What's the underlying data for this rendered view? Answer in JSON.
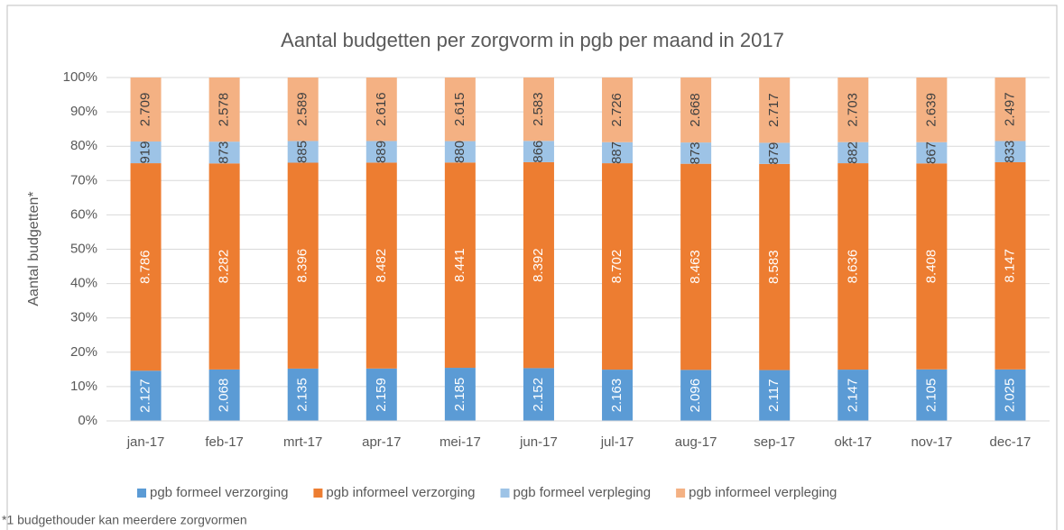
{
  "chart_data": {
    "type": "bar",
    "stacked": "percent",
    "title": "Aantal budgetten per zorgvorm in pgb per maand in 2017",
    "y_label": "Aantal budgetten*",
    "footnote": "*1 budgethouder kan meerdere zorgvormen",
    "categories": [
      "jan-17",
      "feb-17",
      "mrt-17",
      "apr-17",
      "mei-17",
      "jun-17",
      "jul-17",
      "aug-17",
      "sep-17",
      "okt-17",
      "nov-17",
      "dec-17"
    ],
    "series": [
      {
        "name": "pgb formeel verzorging",
        "color": "#5b9bd5",
        "values": [
          2127,
          2068,
          2135,
          2159,
          2185,
          2152,
          2163,
          2096,
          2117,
          2147,
          2105,
          2025
        ],
        "value_labels": [
          "2.127",
          "2.068",
          "2.135",
          "2.159",
          "2.185",
          "2.152",
          "2.163",
          "2.096",
          "2.117",
          "2.147",
          "2.105",
          "2.025"
        ]
      },
      {
        "name": "pgb informeel verzorging",
        "color": "#ed7d31",
        "values": [
          8786,
          8282,
          8396,
          8482,
          8441,
          8392,
          8702,
          8463,
          8583,
          8636,
          8408,
          8147
        ],
        "value_labels": [
          "8.786",
          "8.282",
          "8.396",
          "8.482",
          "8.441",
          "8.392",
          "8.702",
          "8.463",
          "8.583",
          "8.636",
          "8.408",
          "8.147"
        ]
      },
      {
        "name": "pgb formeel verpleging",
        "color": "#9dc3e6",
        "values": [
          919,
          873,
          885,
          889,
          880,
          866,
          887,
          873,
          879,
          882,
          867,
          833
        ]
      },
      {
        "name": "pgb informeel verpleging",
        "color": "#f4b183",
        "values": [
          2709,
          2578,
          2589,
          2616,
          2615,
          2583,
          2726,
          2668,
          2717,
          2703,
          2639,
          2497
        ],
        "value_labels": [
          "2.709",
          "2.578",
          "2.589",
          "2.616",
          "2.615",
          "2.583",
          "2.726",
          "2.668",
          "2.717",
          "2.703",
          "2.639",
          "2.497"
        ]
      }
    ],
    "ylim": [
      0,
      100
    ],
    "yticks": [
      {
        "value": 0,
        "label": "0%"
      },
      {
        "value": 10,
        "label": "10%"
      },
      {
        "value": 20,
        "label": "20%"
      },
      {
        "value": 30,
        "label": "30%"
      },
      {
        "value": 40,
        "label": "40%"
      },
      {
        "value": 50,
        "label": "50%"
      },
      {
        "value": 60,
        "label": "60%"
      },
      {
        "value": 70,
        "label": "70%"
      },
      {
        "value": 80,
        "label": "80%"
      },
      {
        "value": 90,
        "label": "90%"
      },
      {
        "value": 100,
        "label": "100%"
      }
    ],
    "grid": true,
    "legend": "bottom"
  }
}
